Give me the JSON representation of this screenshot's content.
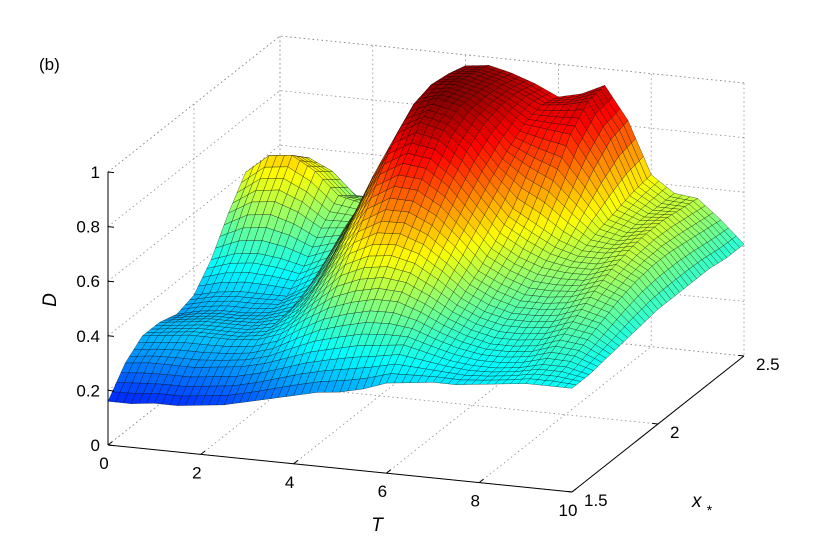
{
  "panel_label": "(b)",
  "chart_data": {
    "type": "surface",
    "title": "",
    "xlabel": "T",
    "ylabel": "x_*",
    "zlabel": "D",
    "xlim": [
      0,
      10
    ],
    "ylim": [
      1.5,
      2.5
    ],
    "zlim": [
      0,
      1
    ],
    "x_ticks": [
      10,
      8,
      6,
      4,
      2,
      0
    ],
    "y_ticks": [
      1.5,
      2,
      2.5
    ],
    "z_ticks": [
      0,
      0.2,
      0.4,
      0.6,
      0.8,
      1
    ],
    "grid": true,
    "colormap": "jet",
    "grid_x": [
      0,
      0.5,
      1,
      1.5,
      2,
      2.5,
      3,
      3.5,
      4,
      4.5,
      5,
      5.5,
      6,
      6.5,
      7,
      7.5,
      8,
      8.5,
      9,
      9.5,
      10
    ],
    "grid_y": [
      1.5,
      1.6,
      1.7,
      1.8,
      1.9,
      2.0,
      2.1,
      2.2,
      2.3,
      2.4,
      2.5
    ],
    "z": [
      [
        0.16,
        0.25,
        0.3,
        0.3,
        0.28,
        0.3,
        0.38,
        0.5,
        0.6,
        0.55,
        0.42
      ],
      [
        0.16,
        0.26,
        0.31,
        0.31,
        0.3,
        0.32,
        0.41,
        0.55,
        0.67,
        0.62,
        0.47
      ],
      [
        0.17,
        0.26,
        0.32,
        0.32,
        0.31,
        0.33,
        0.42,
        0.56,
        0.68,
        0.62,
        0.47
      ],
      [
        0.17,
        0.26,
        0.32,
        0.32,
        0.31,
        0.33,
        0.41,
        0.53,
        0.63,
        0.58,
        0.44
      ],
      [
        0.18,
        0.27,
        0.32,
        0.32,
        0.32,
        0.33,
        0.39,
        0.48,
        0.55,
        0.5,
        0.4
      ],
      [
        0.19,
        0.28,
        0.33,
        0.34,
        0.35,
        0.38,
        0.43,
        0.49,
        0.53,
        0.5,
        0.45
      ],
      [
        0.21,
        0.3,
        0.36,
        0.4,
        0.44,
        0.5,
        0.57,
        0.62,
        0.64,
        0.62,
        0.6
      ],
      [
        0.23,
        0.33,
        0.42,
        0.49,
        0.57,
        0.66,
        0.75,
        0.8,
        0.81,
        0.8,
        0.78
      ],
      [
        0.25,
        0.36,
        0.47,
        0.58,
        0.69,
        0.81,
        0.91,
        0.97,
        0.99,
        0.98,
        0.96
      ],
      [
        0.27,
        0.38,
        0.5,
        0.62,
        0.74,
        0.86,
        0.96,
        1.0,
        1.0,
        0.99,
        0.97
      ],
      [
        0.28,
        0.4,
        0.52,
        0.63,
        0.74,
        0.85,
        0.94,
        0.98,
        0.98,
        0.97,
        0.95
      ],
      [
        0.3,
        0.41,
        0.52,
        0.61,
        0.7,
        0.79,
        0.87,
        0.92,
        0.94,
        0.94,
        0.92
      ],
      [
        0.33,
        0.42,
        0.49,
        0.56,
        0.63,
        0.7,
        0.77,
        0.83,
        0.88,
        0.9,
        0.88
      ],
      [
        0.34,
        0.4,
        0.45,
        0.5,
        0.55,
        0.61,
        0.68,
        0.78,
        0.87,
        0.91,
        0.9
      ],
      [
        0.35,
        0.38,
        0.42,
        0.46,
        0.51,
        0.56,
        0.63,
        0.74,
        0.86,
        0.93,
        0.94
      ],
      [
        0.35,
        0.37,
        0.4,
        0.44,
        0.48,
        0.53,
        0.58,
        0.66,
        0.74,
        0.8,
        0.82
      ],
      [
        0.36,
        0.37,
        0.4,
        0.44,
        0.48,
        0.52,
        0.55,
        0.58,
        0.6,
        0.62,
        0.63
      ],
      [
        0.37,
        0.38,
        0.41,
        0.45,
        0.49,
        0.52,
        0.55,
        0.56,
        0.57,
        0.57,
        0.57
      ],
      [
        0.38,
        0.4,
        0.44,
        0.48,
        0.52,
        0.55,
        0.57,
        0.58,
        0.58,
        0.57,
        0.56
      ],
      [
        0.38,
        0.4,
        0.43,
        0.46,
        0.49,
        0.51,
        0.52,
        0.52,
        0.51,
        0.5,
        0.49
      ],
      [
        0.38,
        0.38,
        0.39,
        0.4,
        0.41,
        0.42,
        0.42,
        0.42,
        0.42,
        0.41,
        0.41
      ]
    ]
  }
}
